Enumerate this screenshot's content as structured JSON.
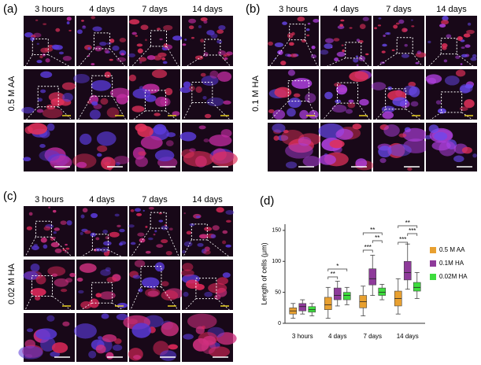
{
  "panels": [
    {
      "label": "(a)",
      "condition": "0.5 M AA",
      "columns": [
        "3 hours",
        "4 days",
        "7 days",
        "14 days"
      ]
    },
    {
      "label": "(b)",
      "condition": "0.1 M HA",
      "columns": [
        "3 hours",
        "4 days",
        "7 days",
        "14 days"
      ]
    },
    {
      "label": "(c)",
      "condition": "0.02 M HA",
      "columns": [
        "3 hours",
        "4 days",
        "7 days",
        "14 days"
      ]
    }
  ],
  "chart_panel_label": "(d)",
  "chart_data": {
    "type": "box",
    "y_label": "Length of cells (μm)",
    "categories": [
      "3 hours",
      "4 days",
      "7 days",
      "14 days"
    ],
    "ylim": [
      0,
      160
    ],
    "yticks": [
      0,
      50,
      100,
      150
    ],
    "series": [
      {
        "name": "0.5 M AA",
        "color": "#e8a030",
        "values": [
          {
            "min": 8,
            "q1": 15,
            "median": 20,
            "q3": 25,
            "max": 32
          },
          {
            "min": 8,
            "q1": 22,
            "median": 30,
            "q3": 42,
            "max": 58
          },
          {
            "min": 12,
            "q1": 25,
            "median": 35,
            "q3": 45,
            "max": 60
          },
          {
            "min": 15,
            "q1": 28,
            "median": 40,
            "q3": 52,
            "max": 72
          }
        ]
      },
      {
        "name": "0.1M HA",
        "color": "#8e3a9a",
        "values": [
          {
            "min": 15,
            "q1": 20,
            "median": 27,
            "q3": 32,
            "max": 38
          },
          {
            "min": 28,
            "q1": 38,
            "median": 45,
            "q3": 57,
            "max": 68
          },
          {
            "min": 45,
            "q1": 62,
            "median": 72,
            "q3": 88,
            "max": 110
          },
          {
            "min": 55,
            "q1": 70,
            "median": 82,
            "q3": 100,
            "max": 128
          }
        ]
      },
      {
        "name": "0.02M HA",
        "color": "#3ddc3d",
        "values": [
          {
            "min": 12,
            "q1": 18,
            "median": 22,
            "q3": 27,
            "max": 32
          },
          {
            "min": 30,
            "q1": 38,
            "median": 45,
            "q3": 50,
            "max": 58
          },
          {
            "min": 38,
            "q1": 45,
            "median": 50,
            "q3": 57,
            "max": 63
          },
          {
            "min": 40,
            "q1": 52,
            "median": 58,
            "q3": 66,
            "max": 82
          }
        ]
      }
    ],
    "annotations": [
      "**",
      "*",
      "***",
      "**",
      "**",
      "***",
      "***",
      "**"
    ]
  }
}
